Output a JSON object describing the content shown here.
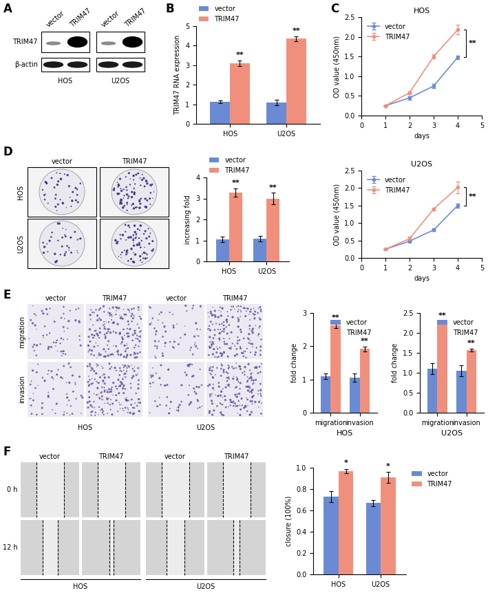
{
  "panel_labels": [
    "A",
    "B",
    "C",
    "D",
    "E",
    "F"
  ],
  "blot": {
    "cell_lines": [
      "HOS",
      "U2OS"
    ],
    "lanes": [
      "vector",
      "TRIM47"
    ],
    "proteins": [
      "TRIM47",
      "β-actin"
    ]
  },
  "colony_images": {
    "columns": [
      "vector",
      "TRIM47"
    ],
    "rows": [
      "HOS",
      "U2OS"
    ]
  },
  "transwell_images": {
    "columns": [
      "vector",
      "TRIM47",
      "vector",
      "TRIM47"
    ],
    "rows": [
      "migration",
      "invasion"
    ],
    "cell_lines": [
      "HOS",
      "U2OS"
    ]
  },
  "wound_images": {
    "columns": [
      "vector",
      "TRIM47",
      "vector",
      "TRIM47"
    ],
    "rows": [
      "0 h",
      "12 h"
    ],
    "cell_lines": [
      "HOS",
      "U2OS"
    ]
  },
  "chart_data": [
    {
      "type": "bar",
      "y_label": "TRIM47 RNA expression",
      "categories": [
        "HOS",
        "U2OS"
      ],
      "series": [
        {
          "name": "vector",
          "color": "#6a8bd4",
          "values": [
            1.12,
            1.1
          ],
          "errors": [
            0.08,
            0.15
          ]
        },
        {
          "name": "TRIM47",
          "color": "#f0907c",
          "values": [
            3.1,
            4.35
          ],
          "errors": [
            0.15,
            0.12
          ]
        }
      ],
      "annotations": [
        "**",
        "**"
      ],
      "ylim": [
        0,
        5
      ],
      "yticks": [
        0,
        1,
        2,
        3,
        4,
        5
      ],
      "legend": "upper left"
    },
    {
      "type": "line",
      "title": "HOS",
      "x": [
        1,
        2,
        3,
        4
      ],
      "x_label": "days",
      "y_label": "OD value (450nm)",
      "series": [
        {
          "name": "vector",
          "color": "#6a8bd4",
          "marker": "o",
          "values": [
            0.25,
            0.45,
            0.75,
            1.48
          ],
          "errors": [
            0.01,
            0.04,
            0.05,
            0.04
          ]
        },
        {
          "name": "TRIM47",
          "color": "#f0907c",
          "marker": "o",
          "values": [
            0.25,
            0.58,
            1.5,
            2.18
          ],
          "errors": [
            0.01,
            0.03,
            0.05,
            0.12
          ]
        }
      ],
      "annotations": [
        "**"
      ],
      "xlim": [
        0,
        5
      ],
      "xticks": [
        0,
        1,
        2,
        3,
        4,
        5
      ],
      "ylim": [
        0,
        2.5
      ],
      "yticks": [
        {
          "value": 0,
          "label": "0.0"
        },
        0.5,
        {
          "value": 1,
          "label": "1.0"
        },
        1.5,
        {
          "value": 2,
          "label": "2.0"
        },
        2.5
      ],
      "legend": "upper left"
    },
    {
      "type": "line",
      "title": "U2OS",
      "x": [
        1,
        2,
        3,
        4
      ],
      "x_label": "days",
      "y_label": "OD value (450nm)",
      "series": [
        {
          "name": "vector",
          "color": "#6a8bd4",
          "marker": "o",
          "values": [
            0.25,
            0.48,
            0.8,
            1.5
          ],
          "errors": [
            0.01,
            0.03,
            0.04,
            0.06
          ]
        },
        {
          "name": "TRIM47",
          "color": "#f0907c",
          "marker": "o",
          "values": [
            0.25,
            0.55,
            1.4,
            2.02
          ],
          "errors": [
            0.01,
            0.06,
            0.04,
            0.16
          ]
        }
      ],
      "annotations": [
        "**"
      ],
      "xlim": [
        0,
        5
      ],
      "xticks": [
        0,
        1,
        2,
        3,
        4,
        5
      ],
      "ylim": [
        0,
        2.5
      ],
      "yticks": [
        {
          "value": 0,
          "label": "0.0"
        },
        0.5,
        {
          "value": 1,
          "label": "1.0"
        },
        1.5,
        {
          "value": 2,
          "label": "2.0"
        },
        2.5
      ],
      "legend": "upper left"
    },
    {
      "type": "bar",
      "y_label": "increasing fold",
      "categories": [
        "HOS",
        "U2OS"
      ],
      "series": [
        {
          "name": "vector",
          "color": "#6a8bd4",
          "values": [
            1.05,
            1.08
          ],
          "errors": [
            0.12,
            0.12
          ]
        },
        {
          "name": "TRIM47",
          "color": "#f0907c",
          "values": [
            3.28,
            3.0
          ],
          "errors": [
            0.2,
            0.28
          ]
        }
      ],
      "annotations": [
        "**",
        "**"
      ],
      "ylim": [
        0,
        4
      ],
      "yticks": [
        0,
        1,
        2,
        3,
        4
      ],
      "legend": "upper left"
    },
    {
      "type": "bar",
      "x_label": "HOS",
      "y_label": "fold change",
      "categories": [
        "migration",
        "invasion"
      ],
      "series": [
        {
          "name": "vector",
          "color": "#6a8bd4",
          "values": [
            1.1,
            1.05
          ],
          "errors": [
            0.08,
            0.12
          ]
        },
        {
          "name": "TRIM47",
          "color": "#f0907c",
          "values": [
            2.62,
            1.92
          ],
          "errors": [
            0.08,
            0.07
          ]
        }
      ],
      "annotations": [
        "**",
        "**"
      ],
      "ylim": [
        0,
        3
      ],
      "yticks": [
        0,
        1,
        2,
        3
      ],
      "legend": "upper right"
    },
    {
      "type": "bar",
      "x_label": "U2OS",
      "y_label": "fold change",
      "categories": [
        "migration",
        "invasion"
      ],
      "series": [
        {
          "name": "vector",
          "color": "#6a8bd4",
          "values": [
            1.1,
            1.05
          ],
          "errors": [
            0.14,
            0.14
          ]
        },
        {
          "name": "TRIM47",
          "color": "#f0907c",
          "values": [
            2.27,
            1.57
          ],
          "errors": [
            0.03,
            0.03
          ]
        }
      ],
      "annotations": [
        "**",
        "**"
      ],
      "ylim": [
        0,
        2.5
      ],
      "yticks": [
        {
          "value": 0,
          "label": "0.0"
        },
        0.5,
        {
          "value": 1,
          "label": "1.0"
        },
        1.5,
        {
          "value": 2,
          "label": "2.0"
        },
        2.5
      ],
      "legend": "upper right"
    },
    {
      "type": "bar",
      "y_label": "closure (100%)",
      "categories": [
        "HOS",
        "U2OS"
      ],
      "series": [
        {
          "name": "vector",
          "color": "#6a8bd4",
          "values": [
            0.73,
            0.67
          ],
          "errors": [
            0.05,
            0.03
          ]
        },
        {
          "name": "TRIM47",
          "color": "#f0907c",
          "values": [
            0.97,
            0.91
          ],
          "errors": [
            0.02,
            0.05
          ]
        }
      ],
      "annotations": [
        "*",
        "*"
      ],
      "ylim": [
        0,
        1
      ],
      "yticks": [
        {
          "value": 0,
          "label": "0.0"
        },
        0.2,
        0.4,
        0.6,
        0.8,
        {
          "value": 1,
          "label": "1.0"
        }
      ],
      "legend": "right"
    }
  ]
}
